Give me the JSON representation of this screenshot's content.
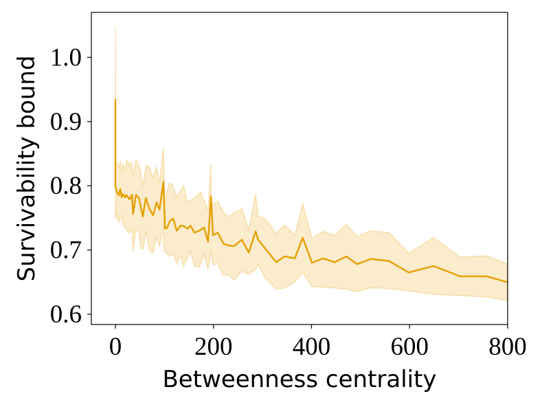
{
  "chart_data": {
    "type": "line",
    "title": "",
    "xlabel": "Betweenness centrality",
    "ylabel": "Survivability bound",
    "xlim": [
      -49,
      800
    ],
    "ylim": [
      0.584,
      1.07
    ],
    "xticks": [
      0,
      200,
      400,
      600,
      800
    ],
    "xtick_labels": [
      "0",
      "200",
      "400",
      "600",
      "800"
    ],
    "yticks": [
      0.6,
      0.7,
      0.8,
      0.9,
      1.0
    ],
    "ytick_labels": [
      "0.6",
      "0.7",
      "0.8",
      "0.9",
      "1.0"
    ],
    "grid": false,
    "legend": "none",
    "colors": {
      "line": "#E69F00",
      "band": "#E69F00",
      "axis": "#000000"
    },
    "series": [
      {
        "name": "mean",
        "points": [
          [
            0,
            0.935
          ],
          [
            0,
            0.798
          ],
          [
            4,
            0.789
          ],
          [
            7,
            0.785
          ],
          [
            10,
            0.795
          ],
          [
            13,
            0.782
          ],
          [
            15,
            0.787
          ],
          [
            20,
            0.782
          ],
          [
            22,
            0.786
          ],
          [
            27,
            0.781
          ],
          [
            29,
            0.779
          ],
          [
            34,
            0.786
          ],
          [
            36,
            0.756
          ],
          [
            42,
            0.786
          ],
          [
            48,
            0.781
          ],
          [
            56,
            0.752
          ],
          [
            62,
            0.781
          ],
          [
            69,
            0.765
          ],
          [
            77,
            0.754
          ],
          [
            84,
            0.774
          ],
          [
            90,
            0.763
          ],
          [
            98,
            0.806
          ],
          [
            101,
            0.734
          ],
          [
            105,
            0.734
          ],
          [
            111,
            0.745
          ],
          [
            118,
            0.749
          ],
          [
            125,
            0.73
          ],
          [
            133,
            0.738
          ],
          [
            140,
            0.737
          ],
          [
            147,
            0.733
          ],
          [
            153,
            0.738
          ],
          [
            161,
            0.727
          ],
          [
            171,
            0.73
          ],
          [
            181,
            0.735
          ],
          [
            189,
            0.713
          ],
          [
            195,
            0.784
          ],
          [
            199,
            0.723
          ],
          [
            209,
            0.727
          ],
          [
            220,
            0.71
          ],
          [
            231,
            0.707
          ],
          [
            242,
            0.706
          ],
          [
            258,
            0.716
          ],
          [
            272,
            0.696
          ],
          [
            286,
            0.729
          ],
          [
            291,
            0.716
          ],
          [
            328,
            0.681
          ],
          [
            345,
            0.69
          ],
          [
            366,
            0.687
          ],
          [
            382,
            0.719
          ],
          [
            401,
            0.68
          ],
          [
            423,
            0.687
          ],
          [
            447,
            0.681
          ],
          [
            471,
            0.69
          ],
          [
            493,
            0.678
          ],
          [
            521,
            0.686
          ],
          [
            558,
            0.683
          ],
          [
            598,
            0.665
          ],
          [
            649,
            0.675
          ],
          [
            703,
            0.659
          ],
          [
            757,
            0.659
          ],
          [
            799,
            0.65
          ]
        ]
      },
      {
        "name": "upper",
        "points": [
          [
            0,
            1.047
          ],
          [
            1,
            0.84
          ],
          [
            6,
            0.829
          ],
          [
            10,
            0.837
          ],
          [
            13,
            0.821
          ],
          [
            15,
            0.834
          ],
          [
            21,
            0.827
          ],
          [
            24,
            0.84
          ],
          [
            28,
            0.832
          ],
          [
            32,
            0.837
          ],
          [
            36,
            0.816
          ],
          [
            42,
            0.84
          ],
          [
            49,
            0.83
          ],
          [
            56,
            0.8
          ],
          [
            63,
            0.832
          ],
          [
            69,
            0.829
          ],
          [
            77,
            0.813
          ],
          [
            84,
            0.829
          ],
          [
            90,
            0.805
          ],
          [
            98,
            0.859
          ],
          [
            101,
            0.771
          ],
          [
            109,
            0.803
          ],
          [
            116,
            0.803
          ],
          [
            125,
            0.782
          ],
          [
            139,
            0.8
          ],
          [
            147,
            0.775
          ],
          [
            161,
            0.781
          ],
          [
            174,
            0.79
          ],
          [
            189,
            0.761
          ],
          [
            195,
            0.834
          ],
          [
            195,
            0.77
          ],
          [
            209,
            0.776
          ],
          [
            220,
            0.759
          ],
          [
            231,
            0.752
          ],
          [
            242,
            0.758
          ],
          [
            258,
            0.764
          ],
          [
            272,
            0.732
          ],
          [
            286,
            0.787
          ],
          [
            291,
            0.753
          ],
          [
            305,
            0.749
          ],
          [
            328,
            0.726
          ],
          [
            345,
            0.739
          ],
          [
            366,
            0.723
          ],
          [
            382,
            0.772
          ],
          [
            401,
            0.718
          ],
          [
            423,
            0.729
          ],
          [
            447,
            0.723
          ],
          [
            471,
            0.74
          ],
          [
            493,
            0.721
          ],
          [
            521,
            0.73
          ],
          [
            558,
            0.727
          ],
          [
            598,
            0.695
          ],
          [
            649,
            0.719
          ],
          [
            703,
            0.689
          ],
          [
            757,
            0.691
          ],
          [
            799,
            0.678
          ]
        ]
      },
      {
        "name": "lower",
        "points": [
          [
            0,
            0.749
          ],
          [
            3,
            0.757
          ],
          [
            6,
            0.742
          ],
          [
            10,
            0.754
          ],
          [
            17,
            0.738
          ],
          [
            28,
            0.726
          ],
          [
            34,
            0.733
          ],
          [
            36,
            0.698
          ],
          [
            42,
            0.733
          ],
          [
            48,
            0.727
          ],
          [
            52,
            0.702
          ],
          [
            57,
            0.702
          ],
          [
            62,
            0.73
          ],
          [
            69,
            0.701
          ],
          [
            77,
            0.695
          ],
          [
            84,
            0.72
          ],
          [
            90,
            0.706
          ],
          [
            98,
            0.736
          ],
          [
            99,
            0.698
          ],
          [
            111,
            0.69
          ],
          [
            118,
            0.695
          ],
          [
            125,
            0.679
          ],
          [
            133,
            0.691
          ],
          [
            139,
            0.674
          ],
          [
            153,
            0.698
          ],
          [
            161,
            0.675
          ],
          [
            171,
            0.673
          ],
          [
            181,
            0.693
          ],
          [
            189,
            0.67
          ],
          [
            195,
            0.698
          ],
          [
            199,
            0.677
          ],
          [
            209,
            0.679
          ],
          [
            220,
            0.661
          ],
          [
            231,
            0.661
          ],
          [
            242,
            0.653
          ],
          [
            258,
            0.667
          ],
          [
            272,
            0.662
          ],
          [
            286,
            0.67
          ],
          [
            291,
            0.678
          ],
          [
            305,
            0.657
          ],
          [
            328,
            0.639
          ],
          [
            345,
            0.641
          ],
          [
            366,
            0.65
          ],
          [
            382,
            0.665
          ],
          [
            401,
            0.643
          ],
          [
            447,
            0.641
          ],
          [
            471,
            0.639
          ],
          [
            493,
            0.635
          ],
          [
            521,
            0.641
          ],
          [
            558,
            0.64
          ],
          [
            649,
            0.631
          ],
          [
            757,
            0.627
          ],
          [
            799,
            0.621
          ]
        ]
      }
    ]
  }
}
